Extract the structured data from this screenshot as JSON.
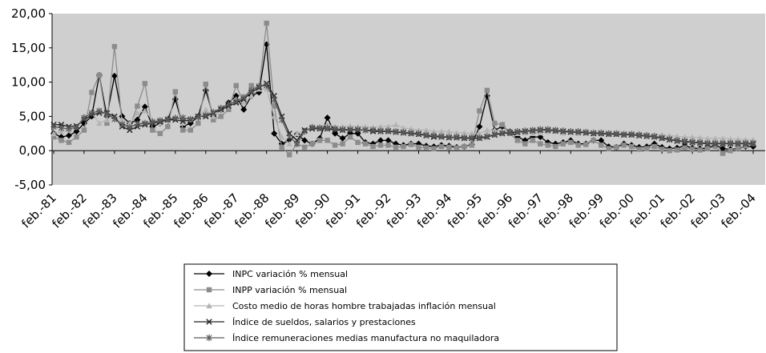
{
  "chart_data": {
    "type": "line",
    "categories": [
      "feb.-81",
      null,
      null,
      null,
      "feb.-82",
      null,
      null,
      null,
      "feb.-83",
      null,
      null,
      null,
      "feb.-84",
      null,
      null,
      null,
      "feb.-85",
      null,
      null,
      null,
      "feb.-86",
      null,
      null,
      null,
      "feb.-87",
      null,
      null,
      null,
      "feb.-88",
      null,
      null,
      null,
      "feb.-89",
      null,
      null,
      null,
      "feb.-90",
      null,
      null,
      null,
      "feb.-91",
      null,
      null,
      null,
      "feb.-92",
      null,
      null,
      null,
      "feb.-93",
      null,
      null,
      null,
      "feb.-94",
      null,
      null,
      null,
      "feb.-95",
      null,
      null,
      null,
      "feb.-96",
      null,
      null,
      null,
      "feb.-97",
      null,
      null,
      null,
      "feb.-98",
      null,
      null,
      null,
      "feb.-99",
      null,
      null,
      null,
      "feb.-00",
      null,
      null,
      null,
      "feb.-01",
      null,
      null,
      null,
      "feb.-02",
      null,
      null,
      null,
      "feb.-03",
      null,
      null,
      null,
      "feb.-04"
    ],
    "series": [
      {
        "name": "INPC variación % mensual",
        "color": "#000000",
        "marker": "diamond",
        "values": [
          2.5,
          2,
          2.2,
          2.8,
          4,
          5,
          11,
          5,
          10.9,
          5,
          4,
          4.5,
          6.4,
          3.5,
          4,
          4.5,
          7.5,
          3.5,
          4,
          5,
          8.8,
          5,
          6,
          7,
          8,
          6,
          8,
          8.5,
          15.5,
          2.5,
          1,
          1.5,
          2.4,
          1.5,
          1,
          1.8,
          4.8,
          2.5,
          1.8,
          2.5,
          2.5,
          1.2,
          1,
          1.5,
          1.5,
          1,
          0.8,
          1,
          1,
          0.7,
          0.6,
          0.8,
          0.7,
          0.5,
          0.6,
          0.9,
          3.5,
          8,
          3,
          3.5,
          2.8,
          2,
          1.5,
          2,
          2,
          1.2,
          1,
          1.2,
          1.5,
          1,
          1,
          1.5,
          1.5,
          0.6,
          0.5,
          1,
          0.8,
          0.5,
          0.6,
          1,
          0.5,
          0.3,
          0.4,
          0.7,
          0.4,
          0.3,
          0.4,
          0.8,
          0.3,
          0.2,
          0.3,
          0.6,
          0.6
        ]
      },
      {
        "name": "INPP variación % mensual",
        "color": "#8c8c8c",
        "marker": "square",
        "values": [
          2,
          1.5,
          1.2,
          2,
          3,
          8.5,
          11,
          4,
          15.2,
          4,
          3.5,
          6.5,
          9.8,
          3,
          2.5,
          3.5,
          8.6,
          3,
          3,
          4,
          9.7,
          4.5,
          5,
          6,
          9.5,
          7,
          9.5,
          9,
          18.6,
          6.5,
          0.5,
          -0.6,
          1,
          0.5,
          1,
          1.5,
          1.5,
          0.8,
          1,
          2,
          1.2,
          1,
          0.6,
          0.8,
          0.8,
          0.5,
          0.6,
          0.9,
          0.5,
          0.4,
          0.3,
          0.6,
          0.5,
          0.4,
          0.6,
          0.8,
          5.8,
          8.8,
          4,
          3.8,
          2.5,
          1.5,
          1,
          1.5,
          1,
          0.8,
          0.6,
          1,
          1.2,
          0.8,
          0.9,
          1.5,
          0.8,
          0.3,
          0.5,
          0.8,
          0.6,
          0.2,
          0.3,
          0.6,
          0.2,
          0,
          0.1,
          0.4,
          0.2,
          0.1,
          0.3,
          0.6,
          -0.4,
          0,
          0.3,
          0.7,
          1
        ]
      },
      {
        "name": "Costo medio de horas hombre trabajadas inflación mensual",
        "color": "#b4b4b4",
        "marker": "triangle",
        "values": [
          2.5,
          2.8,
          3,
          3.5,
          5,
          5.5,
          4,
          4.5,
          5,
          4.5,
          4,
          5.5,
          5.8,
          4.5,
          4,
          4.5,
          5,
          4,
          4.5,
          5,
          6,
          5,
          6,
          6.5,
          7.5,
          7,
          8,
          9,
          9,
          5,
          2,
          1,
          2.5,
          3,
          3.5,
          3.5,
          3.8,
          3.5,
          3.5,
          3.6,
          3.5,
          3.5,
          3.4,
          3.5,
          3.5,
          3.8,
          3.3,
          3.2,
          3,
          3,
          2.8,
          2.8,
          2.8,
          2.6,
          2.6,
          2.5,
          2.5,
          3,
          3,
          2.8,
          2.8,
          2.5,
          2.6,
          2.5,
          2.6,
          2.8,
          2.8,
          2.6,
          2.8,
          2.5,
          2.6,
          2.5,
          2.5,
          2.5,
          2.4,
          2.5,
          2.5,
          2.5,
          2.4,
          2.3,
          2.3,
          2.2,
          2.1,
          2,
          2,
          1.9,
          1.8,
          1.8,
          1.8,
          1.7,
          1.7,
          1.6,
          1.6
        ]
      },
      {
        "name": "Índice de sueldos, salarios y prestaciones",
        "color": "#222222",
        "marker": "x",
        "values": [
          3.8,
          3.8,
          3.5,
          3.6,
          4.5,
          5.2,
          5.5,
          5.5,
          5,
          3.5,
          3,
          3.5,
          3.8,
          4,
          4.2,
          4.5,
          4.5,
          4.3,
          4.5,
          5,
          5,
          5.5,
          6,
          6.5,
          7,
          7.5,
          8.5,
          9.2,
          9.8,
          8,
          5,
          2.5,
          1.5,
          3,
          3.2,
          3.2,
          3.2,
          3,
          3,
          3,
          3,
          3,
          2.8,
          2.8,
          2.8,
          2.7,
          2.6,
          2.5,
          2.4,
          2.2,
          2,
          2,
          1.9,
          1.9,
          1.8,
          1.8,
          1.8,
          2,
          2.3,
          2.5,
          2.6,
          2.7,
          2.8,
          2.9,
          3,
          3,
          2.9,
          2.8,
          2.7,
          2.7,
          2.6,
          2.5,
          2.5,
          2.4,
          2.4,
          2.3,
          2.3,
          2.2,
          2.1,
          2,
          1.8,
          1.6,
          1.4,
          1.3,
          1.2,
          1.1,
          1,
          1,
          1,
          1,
          1,
          1,
          1
        ]
      },
      {
        "name": "Índice remuneraciones medias manufactura no maquiladora",
        "color": "#5a5a5a",
        "marker": "asterisk",
        "values": [
          3.5,
          3.3,
          3.2,
          3.4,
          4.8,
          5.5,
          5.8,
          5.4,
          4.6,
          3.8,
          3.4,
          3.9,
          4,
          4.2,
          4.4,
          4.6,
          4.7,
          4.8,
          4.6,
          4.9,
          5.2,
          5.6,
          6.2,
          6.8,
          7.2,
          7.8,
          8.8,
          9.4,
          9.5,
          7.5,
          4.5,
          2,
          1,
          2.8,
          3.4,
          3.3,
          3.3,
          3.2,
          3.1,
          3.1,
          3.1,
          3,
          3,
          2.9,
          2.9,
          2.8,
          2.7,
          2.6,
          2.5,
          2.3,
          2.2,
          2.1,
          2,
          2,
          1.9,
          1.9,
          1.9,
          2.1,
          2.4,
          2.6,
          2.7,
          2.8,
          2.9,
          3,
          3.1,
          3.1,
          3,
          2.9,
          2.8,
          2.8,
          2.7,
          2.6,
          2.6,
          2.5,
          2.5,
          2.4,
          2.4,
          2.3,
          2.2,
          2.1,
          1.9,
          1.7,
          1.5,
          1.4,
          1.3,
          1.2,
          1.1,
          1.1,
          1.1,
          1.1,
          1.1,
          1.1,
          1.1
        ]
      }
    ],
    "ylim": [
      -5,
      20
    ],
    "yticks": [
      {
        "value": -5,
        "label": "-5,00"
      },
      {
        "value": 0,
        "label": "0,00"
      },
      {
        "value": 5,
        "label": "5,00"
      },
      {
        "value": 10,
        "label": "10,00"
      },
      {
        "value": 15,
        "label": "15,00"
      },
      {
        "value": 20,
        "label": "20,00"
      }
    ]
  }
}
